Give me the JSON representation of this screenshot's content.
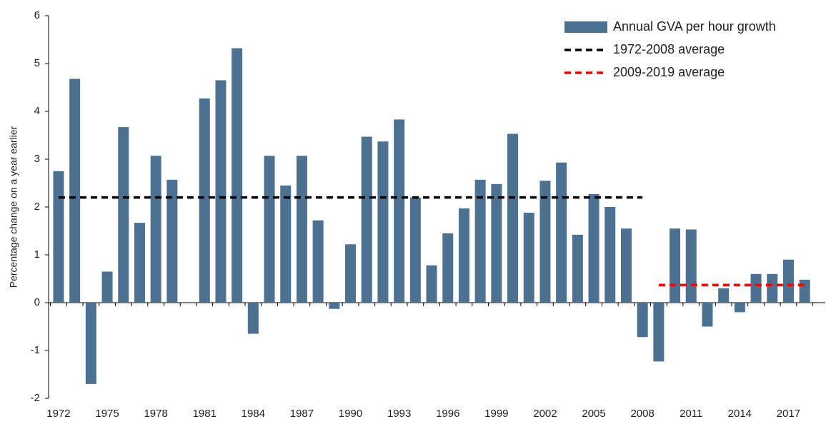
{
  "chart_data": {
    "type": "bar",
    "y_label": "Percentage change on a year earlier",
    "categories": [
      "1972",
      null,
      null,
      "1975",
      null,
      null,
      "1978",
      null,
      null,
      "1981",
      null,
      null,
      "1984",
      null,
      null,
      "1987",
      null,
      null,
      "1990",
      null,
      null,
      "1993",
      null,
      null,
      "1996",
      null,
      null,
      "1999",
      null,
      null,
      "2002",
      null,
      null,
      "2005",
      null,
      null,
      "2008",
      null,
      null,
      "2011",
      null,
      null,
      "2014",
      null,
      null,
      "2017",
      null
    ],
    "series": [
      {
        "name": "Annual GVA per hour growth",
        "type": "bar",
        "color": "#4d7191",
        "values": [
          2.75,
          4.68,
          -1.7,
          0.65,
          3.67,
          1.67,
          3.07,
          2.57,
          0,
          4.27,
          4.65,
          5.32,
          -0.65,
          3.07,
          2.45,
          3.07,
          1.72,
          -0.13,
          1.22,
          3.47,
          3.37,
          3.83,
          2.2,
          0.78,
          1.45,
          1.97,
          2.57,
          2.48,
          3.53,
          1.88,
          2.55,
          2.93,
          1.42,
          2.27,
          2.0,
          1.55,
          -0.72,
          -1.23,
          1.55,
          1.53,
          -0.5,
          0.3,
          -0.2,
          0.6,
          0.6,
          0.9,
          0.48
        ]
      },
      {
        "name": "1972-2008 average",
        "type": "line",
        "color": "#000000",
        "values": [
          2.2,
          2.2,
          2.2,
          2.2,
          2.2,
          2.2,
          2.2,
          2.2,
          2.2,
          2.2,
          2.2,
          2.2,
          2.2,
          2.2,
          2.2,
          2.2,
          2.2,
          2.2,
          2.2,
          2.2,
          2.2,
          2.2,
          2.2,
          2.2,
          2.2,
          2.2,
          2.2,
          2.2,
          2.2,
          2.2,
          2.2,
          2.2,
          2.2,
          2.2,
          2.2,
          2.2,
          2.2,
          null,
          null,
          null,
          null,
          null,
          null,
          null,
          null,
          null,
          null
        ]
      },
      {
        "name": "2009-2019 average",
        "type": "line",
        "color": "#ff0000",
        "values": [
          null,
          null,
          null,
          null,
          null,
          null,
          null,
          null,
          null,
          null,
          null,
          null,
          null,
          null,
          null,
          null,
          null,
          null,
          null,
          null,
          null,
          null,
          null,
          null,
          null,
          null,
          null,
          null,
          null,
          null,
          null,
          null,
          null,
          null,
          null,
          null,
          null,
          0.37,
          0.37,
          0.37,
          0.37,
          0.37,
          0.37,
          0.37,
          0.37,
          0.37,
          0.37
        ]
      }
    ],
    "ylim": [
      -2,
      6
    ],
    "yticks": [
      -2,
      -1,
      0,
      1,
      2,
      3,
      4,
      5,
      6
    ],
    "legend": "top-right"
  }
}
